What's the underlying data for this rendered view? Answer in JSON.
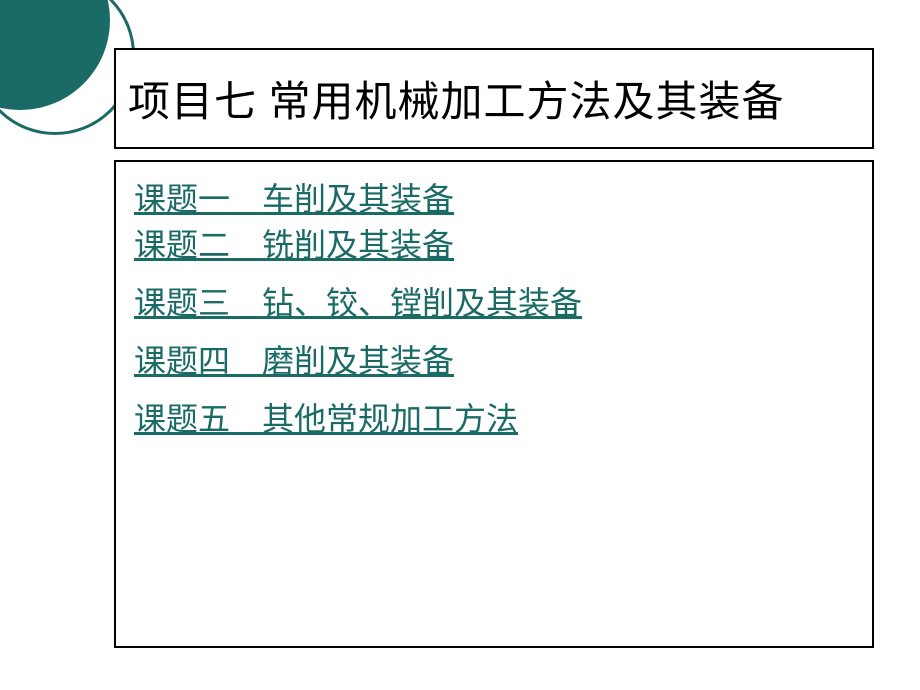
{
  "decoration": {
    "circle_color": "#1a6b66"
  },
  "title": {
    "text": "项目七  常用机械加工方法及其装备",
    "color": "#000000",
    "fontsize": 42,
    "border_color": "#000000"
  },
  "content": {
    "border_color": "#000000",
    "link_color": "#1a6b66",
    "link_fontsize": 32,
    "topics": [
      {
        "label": "课题一",
        "content": "车削及其装备"
      },
      {
        "label": "课题二",
        "content": "铣削及其装备"
      },
      {
        "label": "课题三",
        "content": "钻、铰、镗削及其装备"
      },
      {
        "label": "课题四",
        "content": "磨削及其装备"
      },
      {
        "label": "课题五",
        "content": "其他常规加工方法"
      }
    ]
  },
  "background_color": "#ffffff"
}
